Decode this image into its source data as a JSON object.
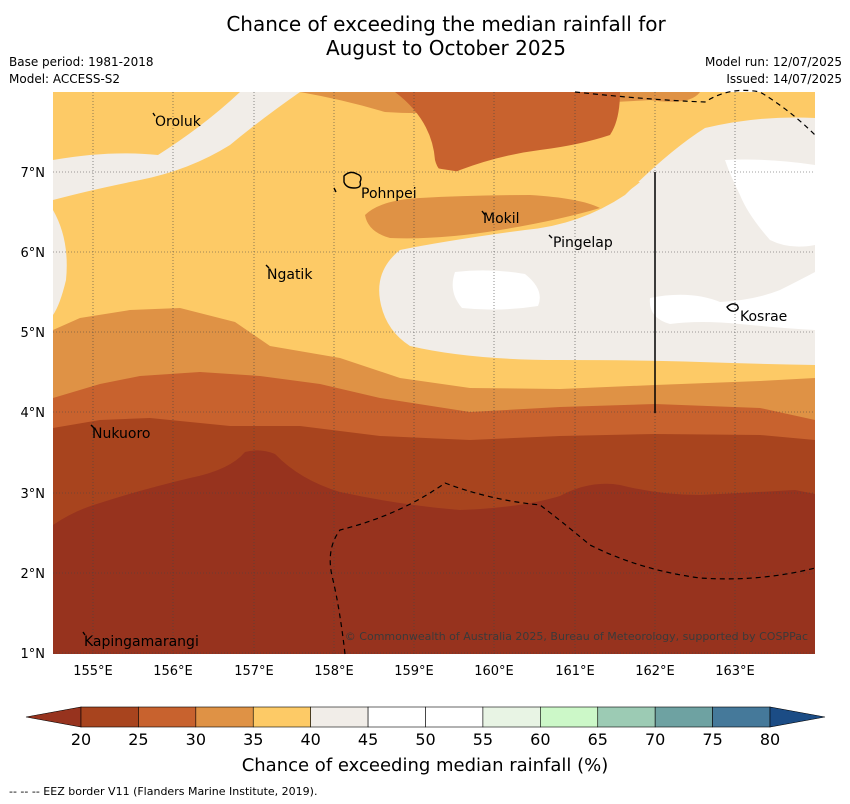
{
  "title": {
    "line1": "Chance of exceeding the median rainfall for",
    "line2": "August to October 2025"
  },
  "meta": {
    "base_period": "Base period: 1981-2018",
    "model": "Model: ACCESS-S2",
    "model_run": "Model run: 12/07/2025",
    "issued": "Issued: 14/07/2025"
  },
  "map": {
    "lon_ticks": [
      "155°E",
      "156°E",
      "157°E",
      "158°E",
      "159°E",
      "160°E",
      "161°E",
      "162°E",
      "163°E"
    ],
    "lat_ticks": [
      "7°N",
      "6°N",
      "5°N",
      "4°N",
      "3°N",
      "2°N",
      "1°N"
    ],
    "places": [
      "Oroluk",
      "Pohnpei",
      "Mokil",
      "Pingelap",
      "Ngatik",
      "Kosrae",
      "Nukuoro",
      "Kapingamarangi"
    ],
    "copyright": "© Commonwealth of Australia 2025, Bureau of Meteorology, supported by COSPPac"
  },
  "colorbar": {
    "ticks": [
      "20",
      "25",
      "30",
      "35",
      "40",
      "45",
      "50",
      "55",
      "60",
      "65",
      "70",
      "75",
      "80"
    ],
    "colors": [
      "#a8441e",
      "#c8622e",
      "#df9245",
      "#fdca66",
      "#f1ede8",
      "#ffffff",
      "#ffffff",
      "#e8f4e4",
      "#ccf8c8",
      "#9ccbb4",
      "#6ea2a2",
      "#45799a"
    ],
    "under_color": "#97331e",
    "over_color": "#1b4c85",
    "label": "Chance of exceeding median rainfall (%)"
  },
  "footer": "--  --  -- EEZ border V11 (Flanders Marine Institute, 2019)."
}
